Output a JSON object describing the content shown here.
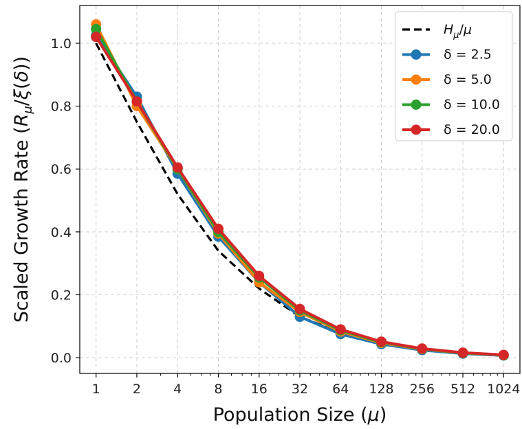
{
  "chart_data": {
    "type": "line",
    "xscale": "log2",
    "x": [
      1,
      2,
      4,
      8,
      16,
      32,
      64,
      128,
      256,
      512,
      1024
    ],
    "x_tick_labels": [
      "1",
      "2",
      "4",
      "8",
      "16",
      "32",
      "64",
      "128",
      "256",
      "512",
      "1024"
    ],
    "y_ticks": [
      0.0,
      0.2,
      0.4,
      0.6,
      0.8,
      1.0
    ],
    "y_tick_labels": [
      "0.0",
      "0.2",
      "0.4",
      "0.6",
      "0.8",
      "1.0"
    ],
    "ylim": [
      -0.05,
      1.12
    ],
    "grid": true,
    "legend_position": "top-right",
    "xlabel": "Population Size (μ)",
    "ylabel": "Scaled Growth Rate (R_μ/ξ(δ))",
    "reference": {
      "name": "H_μ/μ",
      "style": "dashed",
      "color": "#000000",
      "values": [
        1.0,
        0.75,
        0.52,
        0.34,
        0.22,
        0.13,
        0.08,
        0.045,
        0.025,
        0.013,
        0.007
      ]
    },
    "series": [
      {
        "name": "δ = 2.5",
        "color": "#1f77b4",
        "values": [
          1.025,
          0.83,
          0.585,
          0.385,
          0.24,
          0.13,
          0.075,
          0.043,
          0.024,
          0.013,
          0.007
        ]
      },
      {
        "name": "δ = 5.0",
        "color": "#ff7f0e",
        "values": [
          1.06,
          0.8,
          0.6,
          0.395,
          0.24,
          0.145,
          0.083,
          0.047,
          0.027,
          0.015,
          0.008
        ]
      },
      {
        "name": "δ = 10.0",
        "color": "#2ca02c",
        "values": [
          1.045,
          0.815,
          0.6,
          0.4,
          0.255,
          0.15,
          0.087,
          0.049,
          0.028,
          0.015,
          0.008
        ]
      },
      {
        "name": "δ = 20.0",
        "color": "#d62728",
        "values": [
          1.02,
          0.815,
          0.605,
          0.41,
          0.26,
          0.155,
          0.09,
          0.051,
          0.029,
          0.016,
          0.009
        ]
      }
    ]
  }
}
